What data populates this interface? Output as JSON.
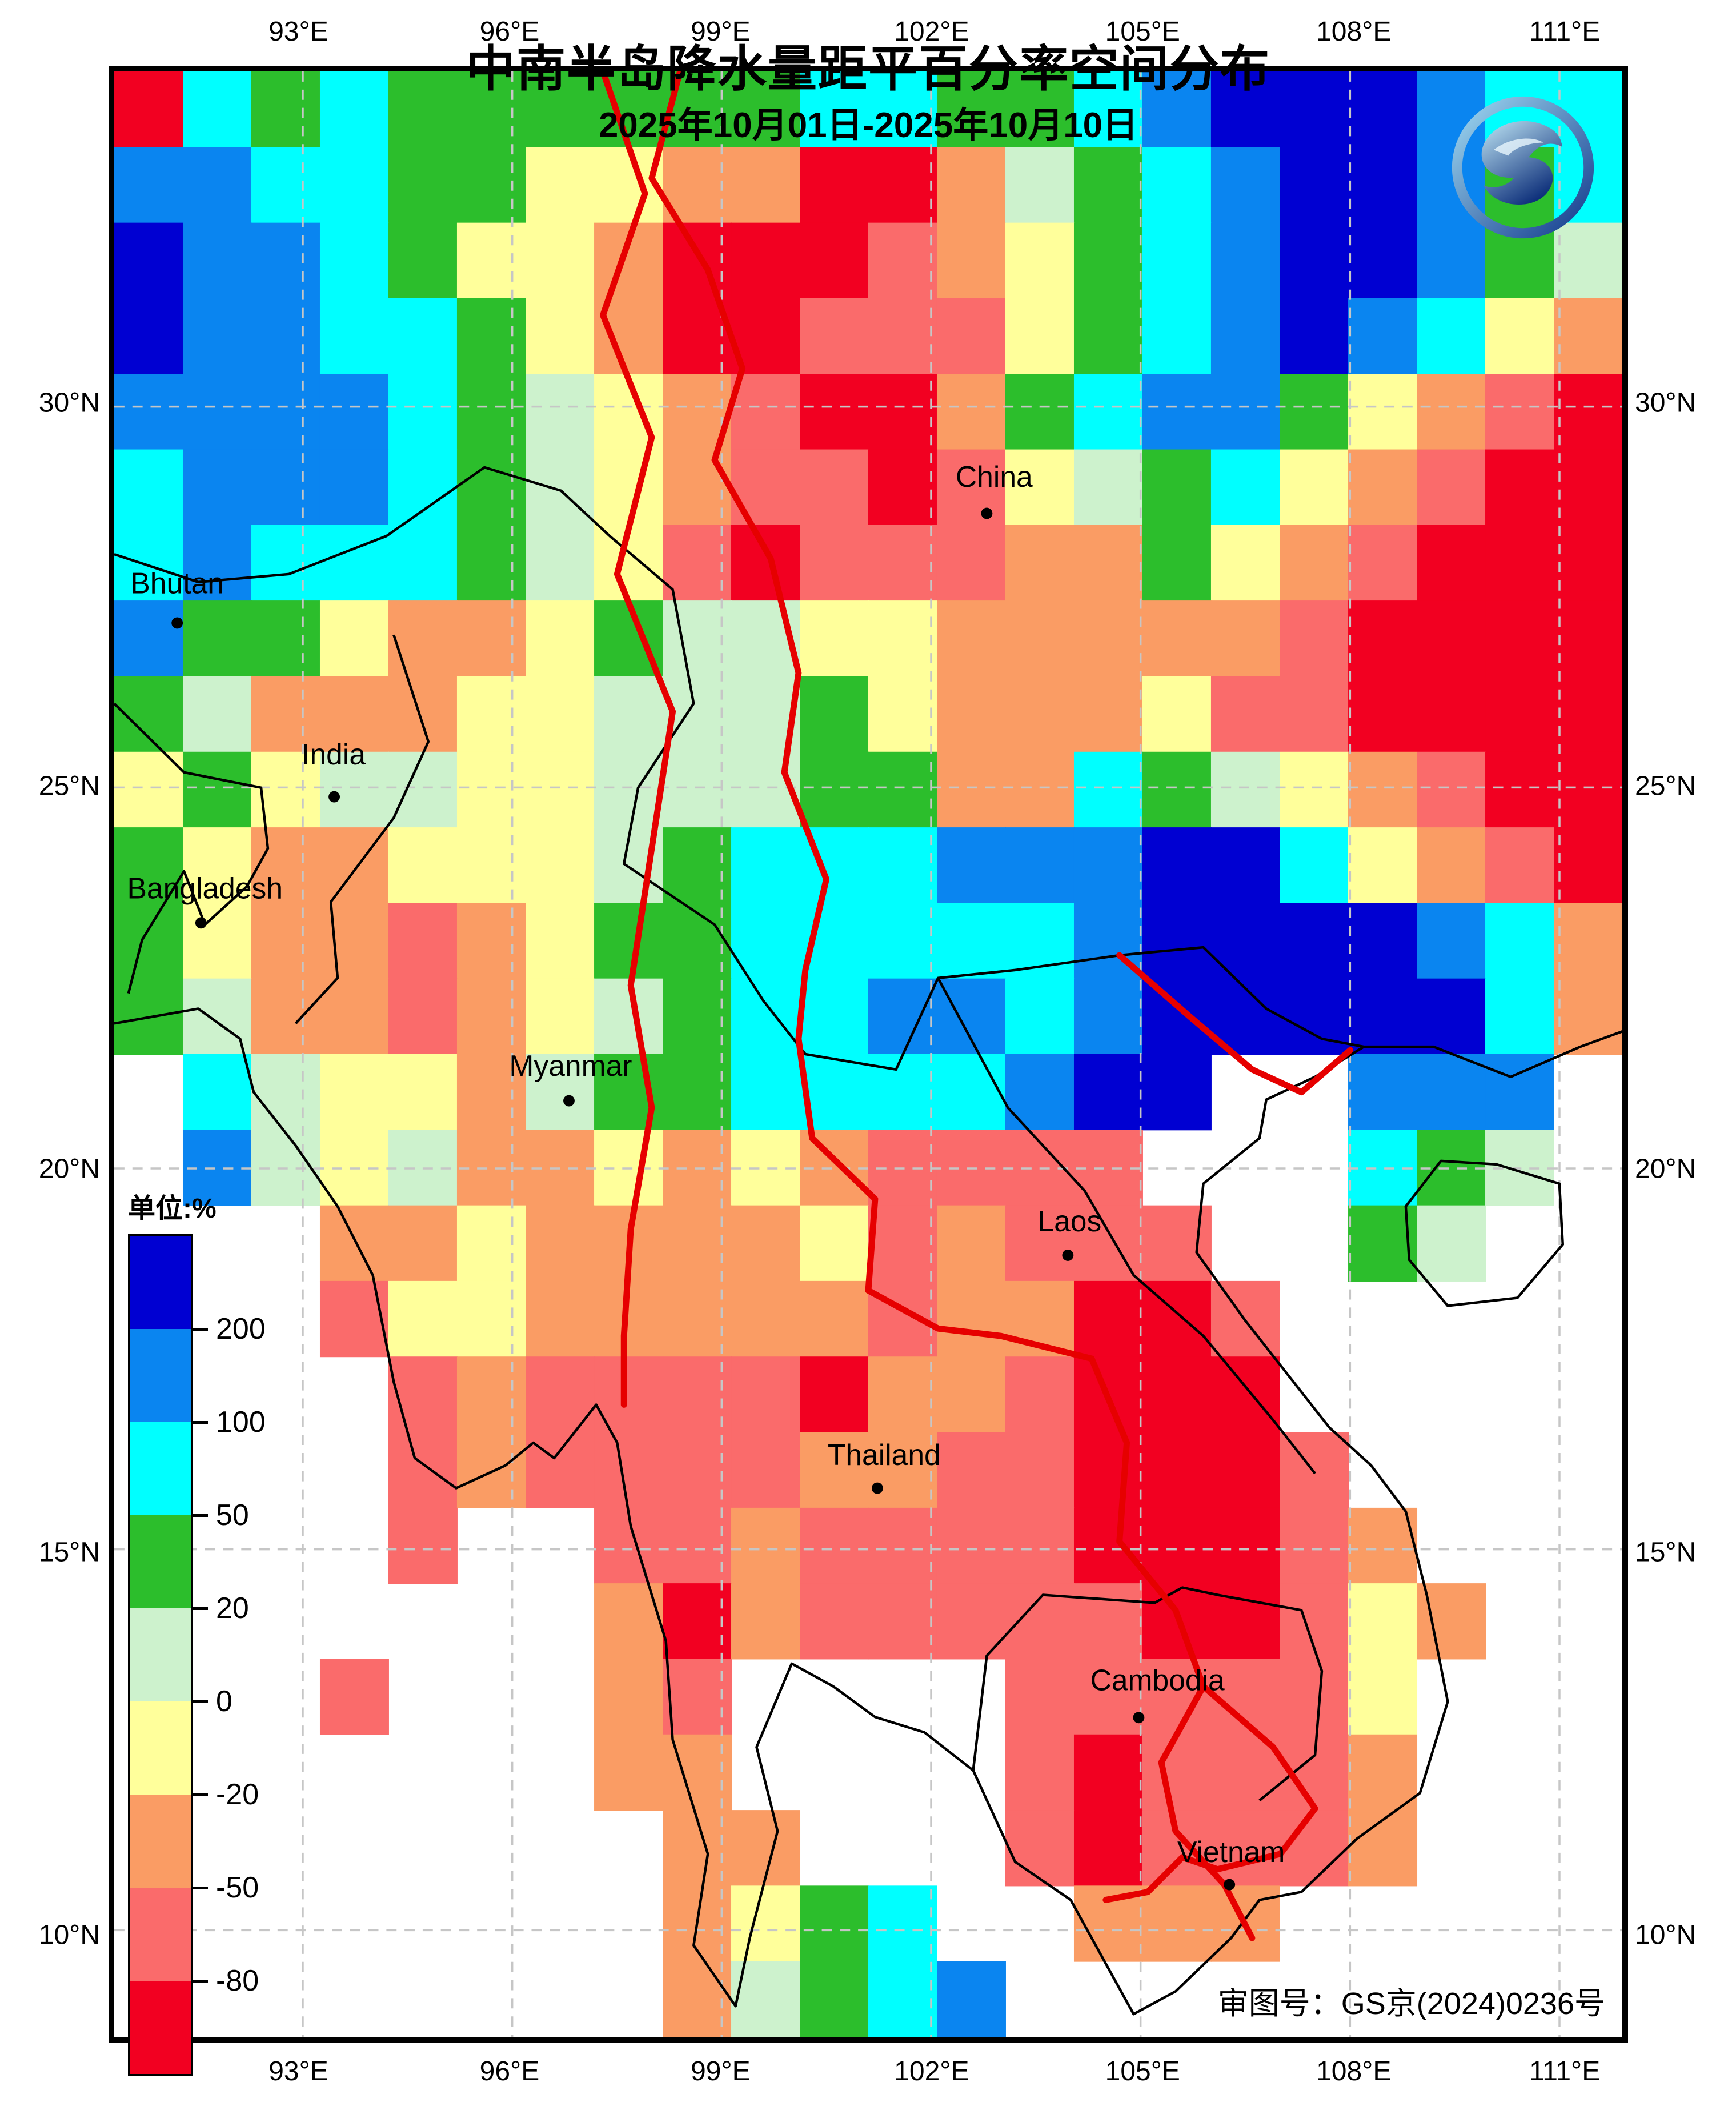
{
  "title": "中南半岛降水量距平百分率空间分布",
  "subtitle": "2025年10月01日-2025年10月10日",
  "approval_label": "审图号：GS京(2024)0236号",
  "logo": {
    "name": "cma-dragon-logo"
  },
  "legend": {
    "header": "单位:%",
    "tick_labels": [
      "200",
      "100",
      "50",
      "20",
      "0",
      "-20",
      "-50",
      "-80"
    ],
    "colors_top_to_bottom": [
      "#0000D2",
      "#0A85F0",
      "#00FFFF",
      "#2CBE2C",
      "#CDF2CD",
      "#FFFF9B",
      "#FA9C64",
      "#FA6B6B",
      "#F20021"
    ]
  },
  "axes": {
    "lon_ticks": [
      {
        "label": "93°E",
        "lon": 93
      },
      {
        "label": "96°E",
        "lon": 96
      },
      {
        "label": "99°E",
        "lon": 99
      },
      {
        "label": "102°E",
        "lon": 102
      },
      {
        "label": "105°E",
        "lon": 105
      },
      {
        "label": "108°E",
        "lon": 108
      },
      {
        "label": "111°E",
        "lon": 111
      }
    ],
    "lat_ticks": [
      {
        "label": "30°N",
        "lat": 30
      },
      {
        "label": "25°N",
        "lat": 25
      },
      {
        "label": "20°N",
        "lat": 20
      },
      {
        "label": "15°N",
        "lat": 15
      },
      {
        "label": "10°N",
        "lat": 10
      }
    ],
    "grid_color": "#c6c6c6"
  },
  "map_labels": {
    "countries": [
      {
        "name": "China",
        "label_lon": 102.9,
        "label_lat": 28.95,
        "dot_lon": 102.8,
        "dot_lat": 28.6
      },
      {
        "name": "Bhutan",
        "label_lon": 91.2,
        "label_lat": 27.55,
        "dot_lon": 91.2,
        "dot_lat": 27.16
      },
      {
        "name": "India",
        "label_lon": 93.44,
        "label_lat": 25.3,
        "dot_lon": 93.45,
        "dot_lat": 24.88
      },
      {
        "name": "Bangladesh",
        "label_lon": 91.6,
        "label_lat": 23.54,
        "dot_lon": 91.54,
        "dot_lat": 23.22
      },
      {
        "name": "Myanmar",
        "label_lon": 96.84,
        "label_lat": 21.22,
        "dot_lon": 96.81,
        "dot_lat": 20.89
      },
      {
        "name": "Laos",
        "label_lon": 103.98,
        "label_lat": 19.17,
        "dot_lon": 103.96,
        "dot_lat": 18.86
      },
      {
        "name": "Thailand",
        "label_lon": 101.33,
        "label_lat": 16.11,
        "dot_lon": 101.23,
        "dot_lat": 15.8
      },
      {
        "name": "Cambodia",
        "label_lon": 105.24,
        "label_lat": 13.15,
        "dot_lon": 104.97,
        "dot_lat": 12.79
      },
      {
        "name": "Vietnam",
        "label_lon": 106.3,
        "label_lat": 10.9,
        "dot_lon": 106.27,
        "dot_lat": 10.6
      }
    ]
  },
  "chart_data": {
    "type": "heatmap",
    "title": "中南半岛降水量距平百分率空间分布",
    "units": "%",
    "period": "2025-10-01 to 2025-10-10",
    "bounds": {
      "lon_min": 90.3,
      "lon_max": 111.9,
      "lat_min": 8.6,
      "lat_max": 34.4
    },
    "level_thresholds": [
      -80,
      -50,
      -20,
      0,
      20,
      50,
      100,
      200
    ],
    "palette": {
      "B": "#0000D2",
      "b": "#0A85F0",
      "c": "#00FFFF",
      "g": "#2CBE2C",
      "l": "#CDF2CD",
      "y": "#FFFF9B",
      "o": "#FA9C64",
      "r": "#FA6B6B",
      "R": "#F20021",
      "w": "#FFFFFF"
    },
    "palette_meaning": {
      "B": ">200",
      "b": "100~200",
      "c": "50~100",
      "g": "20~50",
      "l": "0~20",
      "y": "-20~0",
      "o": "-50~-20",
      "r": "-80~-50",
      "R": "<-80",
      "w": "sea / no data"
    },
    "grid_cols": 22,
    "grid_rows": 26,
    "grid": [
      "RcgcggggggccggcbBBBbcc",
      "bbccggyyooRRolgcbBBbgc",
      "BbbcgyyoRRRroygcbBBbgl",
      "BbbccgyoRRrrrygcbBbcyo",
      "bbbbcglyorRRogcbbgyorR",
      "cbbbcglyorrRrylgcyorRR",
      "cbcccglyrRrrroogyorRRR",
      "bggyooygllyyooooorRRRR",
      "gloooyylllgyoooyrrRRRR",
      "ygyllyylllggoocglyorRR",
      "gyooyyylgcccbbbBBcyorR",
      "gyooroyggcccccbBBBBbco",
      "glooroylgccbbcbBBBBBco",
      "wclyyolggccccbBBwwbbbw",
      "wblylooyoyorrrrwwwcglw",
      "wwwooyooooyrorrrwwglww",
      "wwwryyooooorooRRrwwwww",
      "wwwwrorrrrRoorRRRwwwww",
      "wwwwrorrrroorrRRRrwwww",
      "wwwwrwwrrorrrrRRRrowww",
      "wwwwwwwoRorrrrrRRryoww",
      "wwwrwwworwwwwrrrrrywww",
      "wwwwwwwoowwwwrRrrrowww",
      "wwwwwwwwoowwwrRrrrowww",
      "wwwwwwwwoygcwwooowwwww",
      "wwwwwwwwolgcbwwwwwwwww"
    ]
  },
  "map_overlays": {
    "coastlines": [
      {
        "name": "mainland-coast",
        "closed": false,
        "points": [
          [
            90.3,
            21.9
          ],
          [
            91.5,
            22.1
          ],
          [
            92.1,
            21.7
          ],
          [
            92.3,
            21.0
          ],
          [
            92.9,
            20.3
          ],
          [
            93.5,
            19.5
          ],
          [
            94.0,
            18.6
          ],
          [
            94.3,
            17.2
          ],
          [
            94.6,
            16.2
          ],
          [
            95.2,
            15.8
          ],
          [
            95.9,
            16.1
          ],
          [
            96.3,
            16.4
          ],
          [
            96.6,
            16.2
          ],
          [
            97.2,
            16.9
          ],
          [
            97.5,
            16.4
          ],
          [
            97.7,
            15.3
          ],
          [
            98.2,
            13.8
          ],
          [
            98.3,
            12.5
          ],
          [
            98.8,
            11.0
          ],
          [
            98.6,
            9.8
          ],
          [
            99.2,
            9.0
          ],
          [
            99.4,
            9.9
          ],
          [
            99.8,
            11.3
          ],
          [
            99.5,
            12.4
          ],
          [
            100.0,
            13.5
          ],
          [
            100.6,
            13.2
          ],
          [
            101.2,
            12.8
          ],
          [
            101.9,
            12.6
          ],
          [
            102.6,
            12.1
          ],
          [
            103.2,
            10.9
          ],
          [
            104.0,
            10.4
          ],
          [
            104.9,
            8.9
          ],
          [
            105.5,
            9.2
          ],
          [
            106.3,
            9.9
          ],
          [
            106.7,
            10.4
          ],
          [
            107.3,
            10.5
          ],
          [
            108.1,
            11.2
          ],
          [
            109.0,
            11.8
          ],
          [
            109.4,
            13.0
          ],
          [
            109.1,
            14.4
          ],
          [
            108.8,
            15.5
          ],
          [
            108.3,
            16.1
          ],
          [
            107.7,
            16.6
          ],
          [
            107.1,
            17.3
          ],
          [
            106.5,
            18.0
          ],
          [
            105.8,
            18.9
          ],
          [
            105.9,
            19.8
          ],
          [
            106.7,
            20.4
          ],
          [
            106.8,
            20.9
          ],
          [
            107.5,
            21.2
          ],
          [
            108.2,
            21.6
          ],
          [
            109.2,
            21.6
          ],
          [
            110.3,
            21.2
          ],
          [
            111.3,
            21.6
          ],
          [
            111.9,
            21.8
          ]
        ]
      },
      {
        "name": "hainan-island",
        "closed": true,
        "points": [
          [
            108.8,
            19.5
          ],
          [
            109.3,
            20.1
          ],
          [
            110.1,
            20.05
          ],
          [
            111.0,
            19.8
          ],
          [
            111.05,
            19.0
          ],
          [
            110.4,
            18.3
          ],
          [
            109.4,
            18.2
          ],
          [
            108.85,
            18.8
          ]
        ]
      },
      {
        "name": "himalaya-china-border",
        "closed": false,
        "points": [
          [
            90.3,
            28.06
          ],
          [
            91.5,
            27.7
          ],
          [
            92.8,
            27.8
          ],
          [
            94.2,
            28.3
          ],
          [
            95.6,
            29.2
          ],
          [
            96.7,
            28.9
          ],
          [
            97.4,
            28.3
          ],
          [
            98.3,
            27.6
          ],
          [
            98.6,
            26.1
          ],
          [
            97.8,
            25.0
          ],
          [
            97.6,
            24.0
          ],
          [
            98.9,
            23.2
          ],
          [
            99.6,
            22.2
          ],
          [
            100.2,
            21.5
          ],
          [
            101.5,
            21.3
          ],
          [
            102.1,
            22.5
          ],
          [
            103.2,
            22.6
          ],
          [
            104.7,
            22.8
          ],
          [
            105.9,
            22.9
          ],
          [
            106.8,
            22.1
          ],
          [
            107.6,
            21.7
          ],
          [
            108.2,
            21.6
          ]
        ]
      },
      {
        "name": "india-bangladesh-border",
        "closed": false,
        "points": [
          [
            90.3,
            26.1
          ],
          [
            91.3,
            25.2
          ],
          [
            92.4,
            25.0
          ],
          [
            92.5,
            24.2
          ],
          [
            92.2,
            23.7
          ],
          [
            91.6,
            23.2
          ],
          [
            91.3,
            23.9
          ],
          [
            90.7,
            23.0
          ],
          [
            90.5,
            22.3
          ]
        ]
      },
      {
        "name": "india-myanmar-border",
        "closed": false,
        "points": [
          [
            94.3,
            27.0
          ],
          [
            94.8,
            25.6
          ],
          [
            94.3,
            24.6
          ],
          [
            93.4,
            23.5
          ],
          [
            93.5,
            22.5
          ],
          [
            92.9,
            21.9
          ]
        ]
      },
      {
        "name": "laos-vietnam-border",
        "closed": false,
        "points": [
          [
            102.1,
            22.5
          ],
          [
            103.1,
            20.8
          ],
          [
            104.2,
            19.7
          ],
          [
            104.9,
            18.6
          ],
          [
            105.9,
            17.8
          ],
          [
            106.9,
            16.7
          ],
          [
            107.5,
            16.0
          ]
        ]
      },
      {
        "name": "thailand-cambodia-border",
        "closed": false,
        "points": [
          [
            102.6,
            12.1
          ],
          [
            102.8,
            13.6
          ],
          [
            103.6,
            14.4
          ],
          [
            105.2,
            14.3
          ],
          [
            105.6,
            14.5
          ],
          [
            106.1,
            14.4
          ],
          [
            107.3,
            14.2
          ],
          [
            107.6,
            13.4
          ],
          [
            107.5,
            12.3
          ],
          [
            106.7,
            11.7
          ]
        ]
      }
    ],
    "red_boundary_lines": [
      {
        "name": "lancang-mekong-line",
        "points": [
          [
            98.4,
            34.4
          ],
          [
            98.0,
            33.0
          ],
          [
            98.8,
            31.8
          ],
          [
            99.3,
            30.5
          ],
          [
            98.9,
            29.3
          ],
          [
            99.7,
            28.0
          ],
          [
            100.1,
            26.5
          ],
          [
            99.9,
            25.2
          ],
          [
            100.5,
            23.8
          ],
          [
            100.2,
            22.6
          ],
          [
            100.1,
            21.7
          ],
          [
            100.3,
            20.4
          ],
          [
            101.2,
            19.6
          ],
          [
            101.1,
            18.4
          ],
          [
            102.1,
            17.9
          ],
          [
            103.0,
            17.8
          ],
          [
            104.3,
            17.5
          ],
          [
            104.8,
            16.4
          ],
          [
            104.7,
            15.1
          ],
          [
            105.5,
            14.2
          ],
          [
            105.9,
            13.2
          ],
          [
            105.3,
            12.2
          ],
          [
            105.5,
            11.3
          ],
          [
            106.2,
            10.6
          ],
          [
            106.6,
            9.9
          ]
        ]
      },
      {
        "name": "salween-line",
        "points": [
          [
            97.3,
            34.4
          ],
          [
            97.9,
            32.8
          ],
          [
            97.3,
            31.2
          ],
          [
            98.0,
            29.6
          ],
          [
            97.5,
            27.8
          ],
          [
            98.3,
            26.0
          ],
          [
            98.0,
            24.2
          ],
          [
            97.7,
            22.4
          ],
          [
            98.0,
            20.8
          ],
          [
            97.7,
            19.2
          ],
          [
            97.6,
            17.8
          ],
          [
            97.6,
            16.9
          ]
        ]
      },
      {
        "name": "south-vietnam-red-border",
        "points": [
          [
            105.9,
            13.2
          ],
          [
            106.9,
            12.4
          ],
          [
            107.5,
            11.6
          ],
          [
            107.0,
            11.0
          ],
          [
            106.1,
            10.8
          ],
          [
            105.6,
            10.96
          ],
          [
            105.1,
            10.5
          ],
          [
            104.5,
            10.4
          ]
        ]
      },
      {
        "name": "northeast-red-border",
        "points": [
          [
            104.7,
            22.8
          ],
          [
            105.7,
            22.0
          ],
          [
            106.6,
            21.3
          ],
          [
            107.3,
            21.0
          ],
          [
            108.0,
            21.55
          ]
        ]
      }
    ]
  }
}
